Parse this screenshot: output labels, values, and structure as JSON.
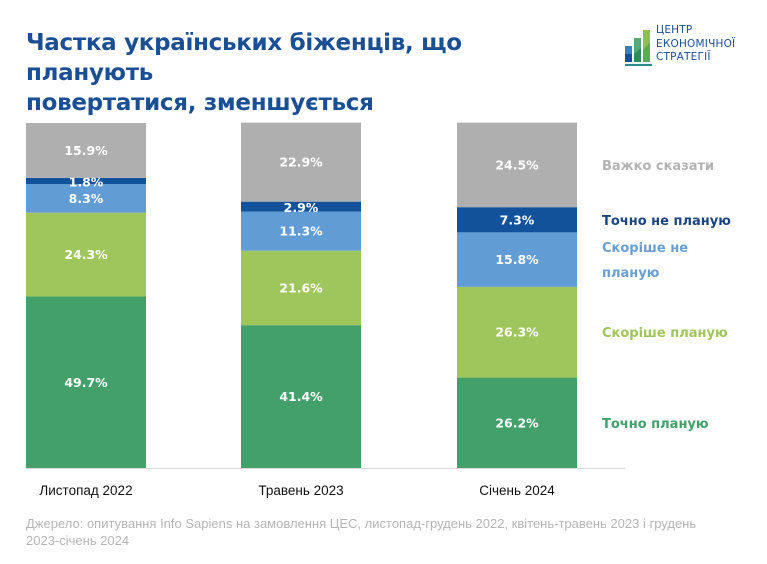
{
  "header": {
    "title_line1": "Частка українських біженців, що планують",
    "title_line2": "повертатися, зменшується"
  },
  "logo": {
    "line1": "ЦЕНТР",
    "line2": "ЕКОНОМІЧНОЇ",
    "line3": "СТРАТЕГІЇ",
    "icon": "bar-chart-logo-icon"
  },
  "colors": {
    "hard_to_say": "#afafaf",
    "definitely_not": "#12529b",
    "rather_not": "#619cd4",
    "rather_yes": "#9fc65d",
    "definitely_yes": "#44a06a",
    "title": "#1a4f93"
  },
  "chart_data": {
    "type": "bar",
    "stacked": true,
    "title": "Частка українських біженців, що планують повертатися, зменшується",
    "xlabel": "",
    "ylabel": "",
    "ylim": [
      0,
      100
    ],
    "grid": false,
    "legend_placement": "right",
    "categories": [
      "Листопад 2022",
      "Травень 2023",
      "Січень 2024"
    ],
    "series": [
      {
        "name": "Точно планую",
        "color": "#44a06a",
        "label_color": "#44a06a",
        "values": [
          49.7,
          41.4,
          26.2
        ],
        "labels": [
          "49.7%",
          "41.4%",
          "26.2%"
        ]
      },
      {
        "name": "Скоріше планую",
        "color": "#9fc65d",
        "label_color": "#9fc65d",
        "values": [
          24.3,
          21.6,
          26.3
        ],
        "labels": [
          "24.3%",
          "21.6%",
          "26.3%"
        ]
      },
      {
        "name": "Скоріше не планую",
        "color": "#619cd4",
        "label_color": "#6a9fd0",
        "values": [
          8.3,
          11.3,
          15.8
        ],
        "labels": [
          "8.3%",
          "11.3%",
          "15.8%"
        ]
      },
      {
        "name": "Точно не планую",
        "color": "#12529b",
        "label_color": "#1a4580",
        "values": [
          1.8,
          2.9,
          7.3
        ],
        "labels": [
          "1.8%",
          "2.9%",
          "7.3%"
        ]
      },
      {
        "name": "Важко сказати",
        "color": "#afafaf",
        "label_color": "#b3b3b3",
        "values": [
          15.9,
          22.9,
          24.5
        ],
        "labels": [
          "15.9%",
          "22.9%",
          "24.5%"
        ]
      }
    ],
    "legend_lines": {
      "Точно планую": [
        "Точно планую"
      ],
      "Скоріше планую": [
        "Скоріше планую"
      ],
      "Скоріше не планую": [
        "Скоріше не",
        "планую"
      ],
      "Точно не планую": [
        "Точно не планую"
      ],
      "Важко сказати": [
        "Важко сказати"
      ]
    }
  },
  "footer": {
    "source": "Джерело: опитування Info Sapiens на замовлення ЦЕС, листопад-грудень 2022, квітень-травень 2023 і грудень 2023-січень 2024"
  }
}
